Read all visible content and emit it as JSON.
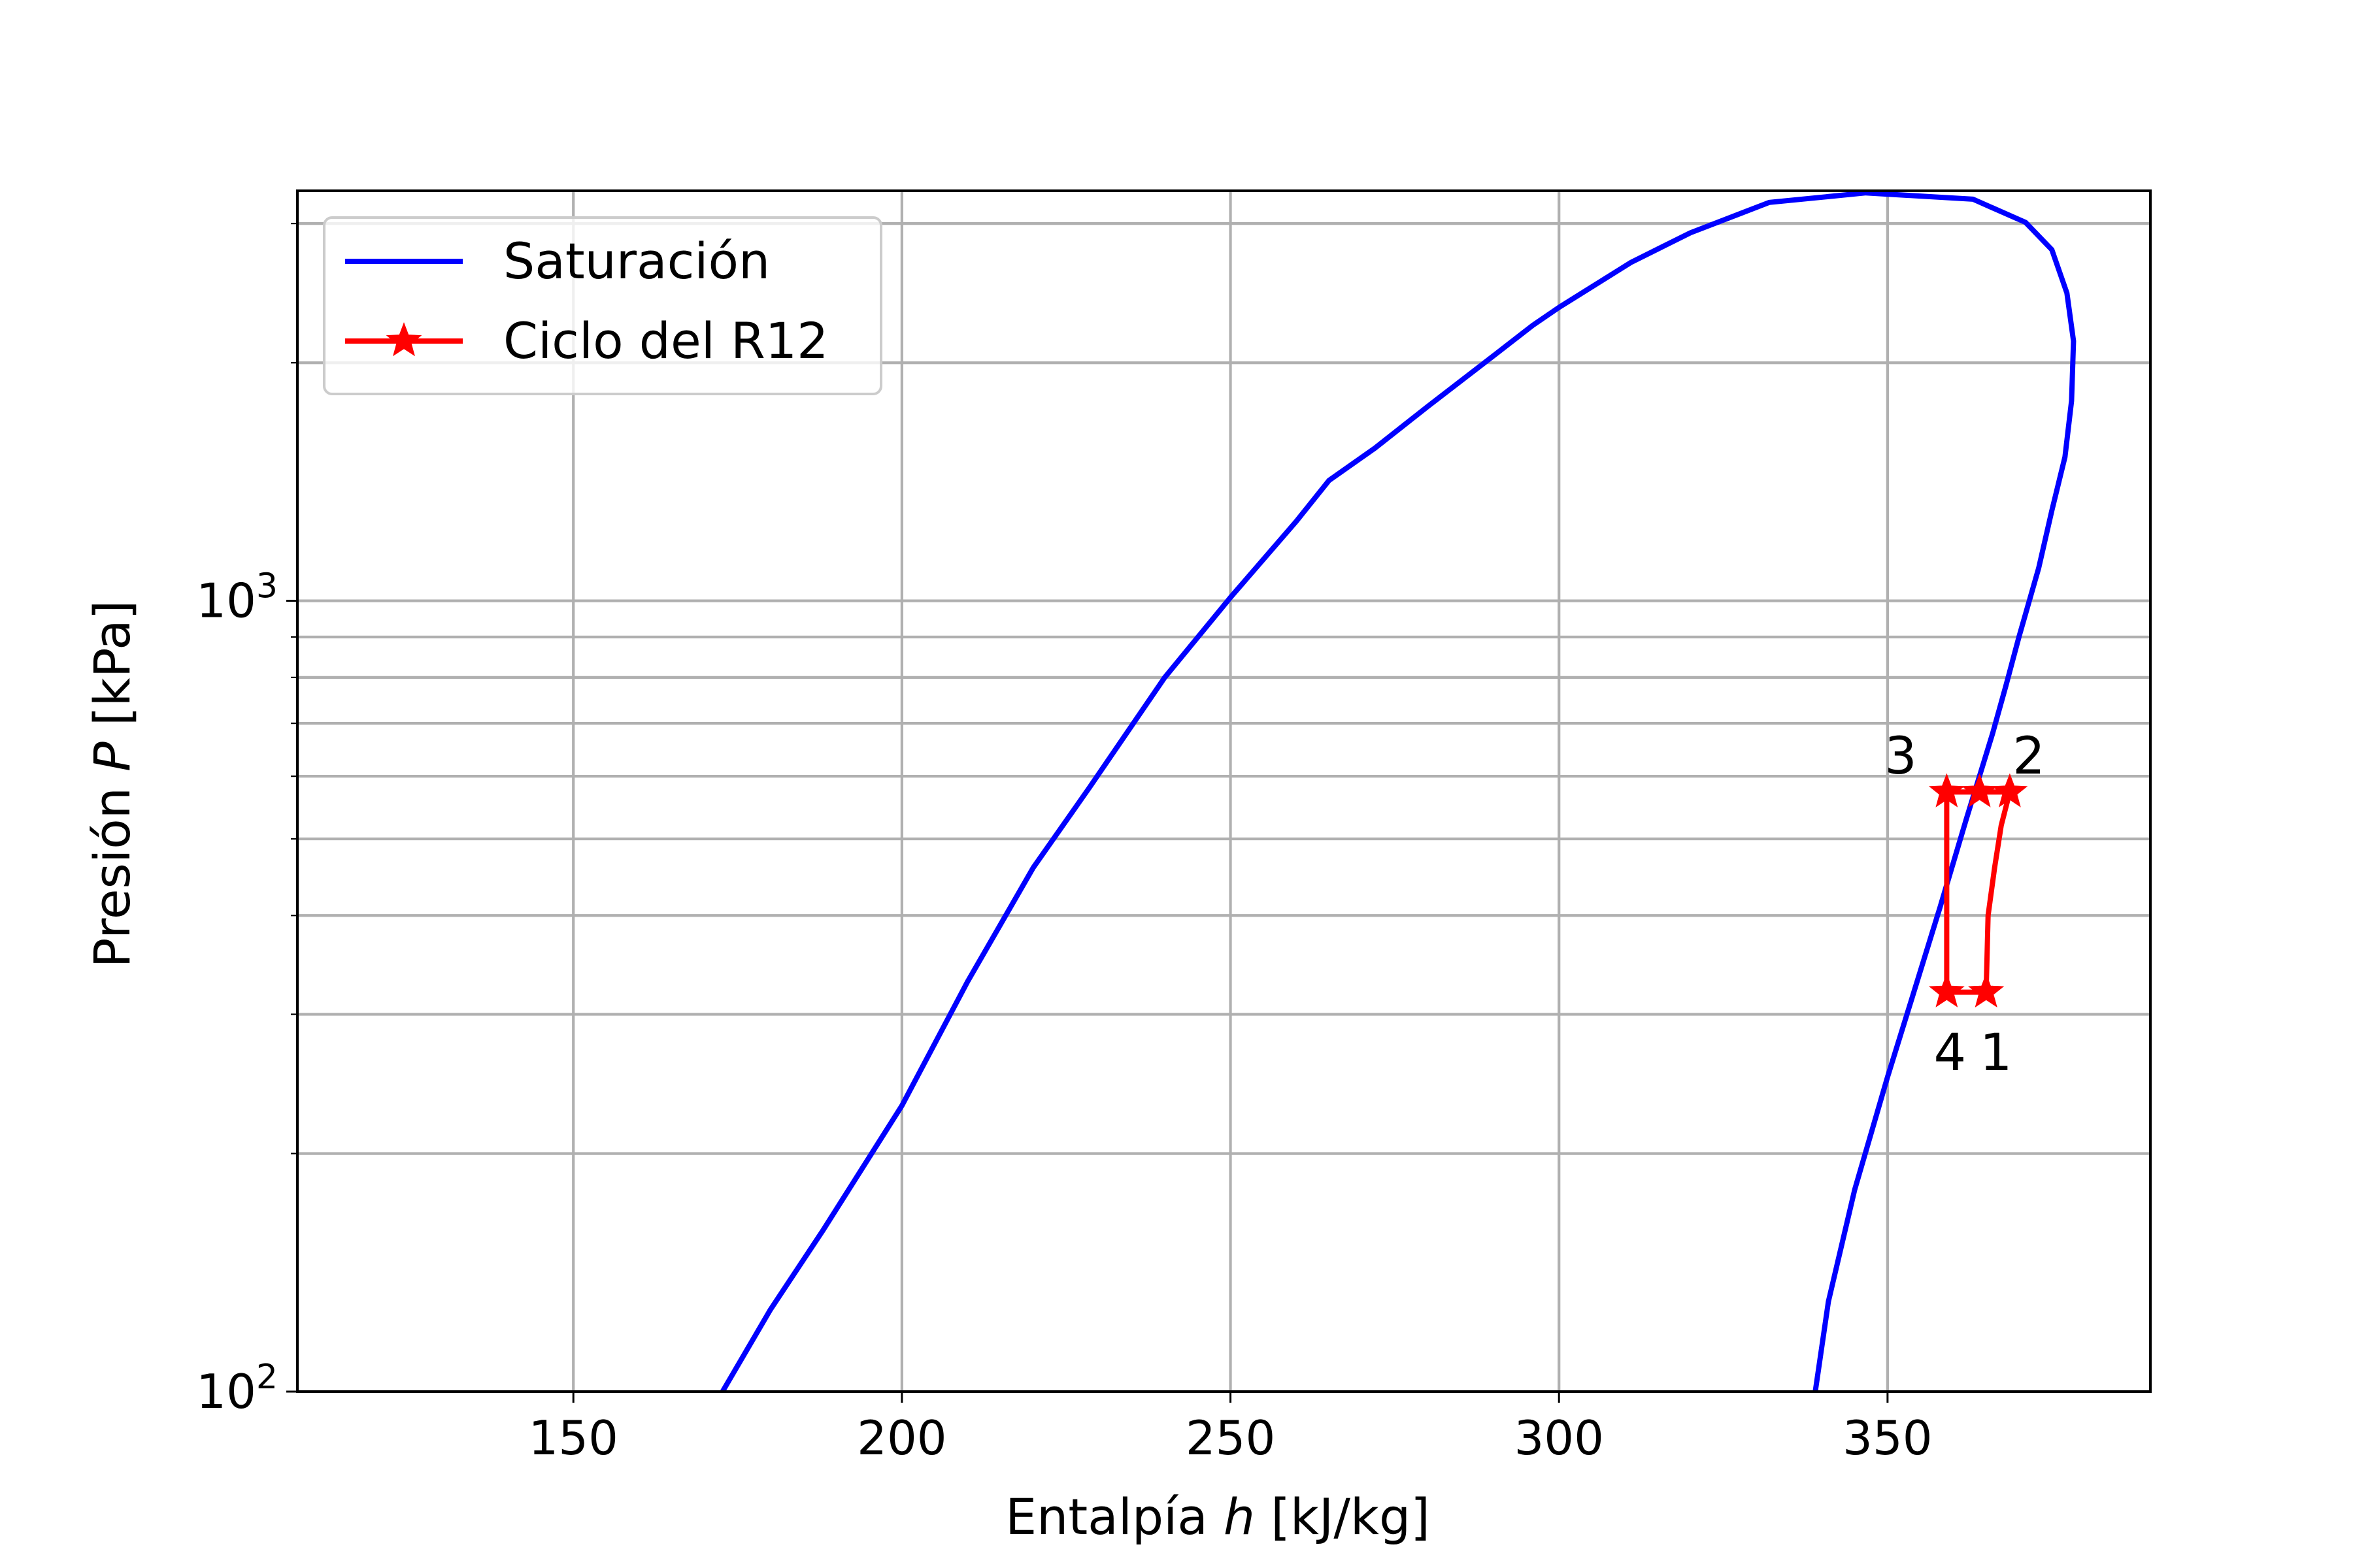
{
  "chart_data": {
    "type": "line",
    "title": "",
    "xlabel_prefix": "Entalpía ",
    "xlabel_var": "h",
    "xlabel_suffix": " [kJ/kg]",
    "ylabel_prefix": "Presión ",
    "ylabel_var": "P",
    "ylabel_suffix": " [kPa]",
    "xlim": [
      108,
      390
    ],
    "ylim": [
      100,
      3300
    ],
    "yscale": "log",
    "grid": true,
    "legend_position": "top-left",
    "x_ticks": [
      150,
      200,
      250,
      300,
      350
    ],
    "x_tick_labels": [
      "150",
      "200",
      "250",
      "300",
      "350"
    ],
    "y_major_ticks": [
      {
        "value": 100,
        "base": "10",
        "exp": "2"
      },
      {
        "value": 1000,
        "base": "10",
        "exp": "3"
      }
    ],
    "y_minor_ticks": [
      200,
      300,
      400,
      500,
      600,
      700,
      800,
      900,
      2000,
      3000
    ],
    "series": [
      {
        "name": "Saturación",
        "color": "#0000ff",
        "marker": "none",
        "points": [
          [
            172.7,
            100
          ],
          [
            180,
            127
          ],
          [
            188,
            160
          ],
          [
            197,
            210
          ],
          [
            200,
            230
          ],
          [
            210,
            330
          ],
          [
            220,
            460
          ],
          [
            228.5,
            580
          ],
          [
            240,
            800
          ],
          [
            250,
            1010
          ],
          [
            260,
            1260
          ],
          [
            265,
            1420
          ],
          [
            272,
            1560
          ],
          [
            280,
            1760
          ],
          [
            290,
            2040
          ],
          [
            296,
            2230
          ],
          [
            300,
            2350
          ],
          [
            311,
            2680
          ],
          [
            320,
            2920
          ],
          [
            332,
            3190
          ],
          [
            346.7,
            3280
          ],
          [
            363,
            3220
          ],
          [
            371,
            3010
          ],
          [
            375,
            2780
          ],
          [
            377.3,
            2450
          ],
          [
            378.3,
            2130
          ],
          [
            378,
            1790
          ],
          [
            377,
            1520
          ],
          [
            375,
            1300
          ],
          [
            373,
            1100
          ],
          [
            370,
            900
          ],
          [
            368,
            780
          ],
          [
            366,
            680
          ],
          [
            362,
            530
          ],
          [
            358,
            410
          ],
          [
            354,
            320
          ],
          [
            350,
            250
          ],
          [
            345,
            180
          ],
          [
            341,
            130
          ],
          [
            339,
            100
          ]
        ]
      },
      {
        "name": "Ciclo del R12",
        "color": "#ff0000",
        "marker": "star",
        "points": [
          [
            365,
            320
          ],
          [
            365.3,
            400
          ],
          [
            366.3,
            460
          ],
          [
            367.3,
            520
          ],
          [
            368.6,
            573
          ],
          [
            364,
            573
          ],
          [
            359,
            573
          ],
          [
            359,
            320
          ],
          [
            365,
            320
          ]
        ],
        "marker_points": [
          [
            365,
            320
          ],
          [
            368.6,
            573
          ],
          [
            364,
            573
          ],
          [
            359,
            573
          ],
          [
            359,
            320
          ],
          [
            365,
            320
          ]
        ]
      }
    ],
    "annotations": [
      {
        "text": "1",
        "x": 366.5,
        "y": 255
      },
      {
        "text": "2",
        "x": 371.5,
        "y": 605
      },
      {
        "text": "3",
        "x": 352,
        "y": 605
      },
      {
        "text": "4",
        "x": 359.5,
        "y": 255
      }
    ]
  }
}
